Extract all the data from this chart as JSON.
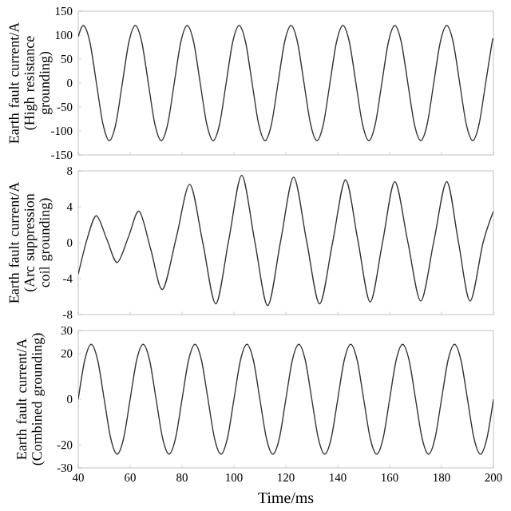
{
  "chart_data": [
    {
      "type": "line",
      "ylabel": "Earth fault current/A (High resistance grounding)",
      "xlim": [
        40,
        200
      ],
      "ylim": [
        -150,
        150
      ],
      "xticks": [
        40,
        60,
        80,
        100,
        120,
        140,
        160,
        180,
        200
      ],
      "yticks": [
        -150,
        -100,
        -50,
        0,
        50,
        100,
        150
      ],
      "tick_labels": "y",
      "grid": false,
      "x": [
        40,
        42,
        44.5,
        47,
        49.5,
        52,
        54.5,
        57,
        59.5,
        62,
        64.5,
        67,
        69.5,
        72,
        74.5,
        77,
        79.5,
        82,
        84.5,
        87,
        89.5,
        92,
        94.5,
        97,
        99.5,
        102,
        104.5,
        107,
        109.5,
        112,
        114.5,
        117,
        119.5,
        122,
        124.5,
        127,
        129.5,
        132,
        134.5,
        137,
        139.5,
        142,
        144.5,
        147,
        149.5,
        152,
        154.5,
        157,
        159.5,
        162,
        164.5,
        167,
        169.5,
        172,
        174.5,
        177,
        179.5,
        182,
        184.5,
        187,
        189.5,
        192,
        194.5,
        197,
        199.5,
        200
      ],
      "series": [
        {
          "color": "#333333",
          "values": [
            97,
            120,
            85,
            0,
            -85,
            -120,
            -85,
            0,
            85,
            120,
            85,
            0,
            -85,
            -120,
            -85,
            0,
            85,
            120,
            85,
            0,
            -85,
            -120,
            -85,
            0,
            85,
            120,
            85,
            0,
            -85,
            -120,
            -85,
            0,
            85,
            120,
            85,
            0,
            -85,
            -120,
            -85,
            0,
            85,
            120,
            85,
            0,
            -85,
            -120,
            -85,
            0,
            85,
            120,
            85,
            0,
            -85,
            -120,
            -85,
            0,
            85,
            120,
            85,
            0,
            -85,
            -120,
            -85,
            0,
            85,
            90
          ]
        }
      ]
    },
    {
      "type": "line",
      "ylabel": "Earth fault current/A (Arc suppression coil grounding)",
      "xlim": [
        40,
        200
      ],
      "ylim": [
        -8,
        8
      ],
      "xticks": [
        40,
        60,
        80,
        100,
        120,
        140,
        160,
        180,
        200
      ],
      "yticks": [
        -8,
        -4,
        0,
        4,
        8
      ],
      "tick_labels": "y",
      "grid": false,
      "x": [
        40,
        43.5,
        47,
        51,
        55,
        59.3,
        63.5,
        68,
        72.5,
        77.8,
        83,
        88,
        93,
        98,
        103,
        108,
        113,
        118,
        123,
        128,
        133,
        138,
        143,
        147.8,
        152.5,
        157.3,
        162,
        167,
        172,
        177,
        182,
        186.5,
        191,
        196,
        200
      ],
      "series": [
        {
          "color": "#333333",
          "values": [
            -3.5,
            0.5,
            3.0,
            0.4,
            -2.2,
            0.6,
            3.5,
            -0.8,
            -5.2,
            0.6,
            6.5,
            0,
            -6.8,
            0.3,
            7.5,
            0.2,
            -7.0,
            0.2,
            7.3,
            0.2,
            -6.8,
            0,
            7.0,
            0.2,
            -6.6,
            0.1,
            6.8,
            0.1,
            -6.5,
            0.1,
            6.8,
            0.1,
            -6.5,
            0,
            3.5
          ]
        }
      ]
    },
    {
      "type": "line",
      "ylabel": "Earth fault current/A (Combined grounding)",
      "xlabel": "Time/ms",
      "xlim": [
        40,
        200
      ],
      "ylim": [
        -30,
        30
      ],
      "xticks": [
        40,
        60,
        80,
        100,
        120,
        140,
        160,
        180,
        200
      ],
      "yticks": [
        -30,
        -20,
        0,
        20,
        30
      ],
      "grid": false,
      "x": [
        40,
        42.5,
        45,
        47.5,
        50,
        52.5,
        55,
        57.5,
        60,
        62.5,
        65,
        67.5,
        70,
        72.5,
        75,
        77.5,
        80,
        82.5,
        85,
        87.5,
        90,
        92.5,
        95,
        97.5,
        100,
        102.5,
        105,
        107.5,
        110,
        112.5,
        115,
        117.5,
        120,
        122.5,
        125,
        127.5,
        130,
        132.5,
        135,
        137.5,
        140,
        142.5,
        145,
        147.5,
        150,
        152.5,
        155,
        157.5,
        160,
        162.5,
        165,
        167.5,
        170,
        172.5,
        175,
        177.5,
        180,
        182.5,
        185,
        187.5,
        190,
        192.5,
        195,
        197.5,
        200
      ],
      "series": [
        {
          "color": "#333333",
          "values": [
            0,
            17,
            24,
            17,
            0,
            -17,
            -24,
            -17,
            0,
            17,
            24,
            17,
            0,
            -17,
            -24,
            -17,
            0,
            17,
            24,
            17,
            0,
            -17,
            -24,
            -17,
            0,
            17,
            24,
            17,
            0,
            -17,
            -24,
            -17,
            0,
            17,
            24,
            17,
            0,
            -17,
            -24,
            -17,
            0,
            17,
            24,
            17,
            0,
            -17,
            -24,
            -17,
            0,
            17,
            24,
            17,
            0,
            -17,
            -24,
            -17,
            0,
            17,
            24,
            17,
            0,
            -17,
            -24,
            -17,
            0
          ]
        }
      ]
    }
  ]
}
